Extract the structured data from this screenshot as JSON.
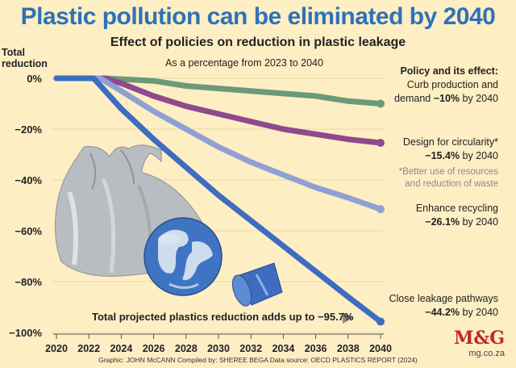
{
  "header": {
    "title": "Plastic pollution can be eliminated by 2040",
    "subtitle": "Effect of policies on reduction in plastic leakage",
    "note": "As a percentage from 2023 to 2040"
  },
  "axis": {
    "ylabel_line1": "Total",
    "ylabel_line2": "reduction"
  },
  "legend": {
    "heading": "Policy and its effect:",
    "curb_line1": "Curb production and",
    "curb_line2_text": "demand ",
    "curb_value": "−10%",
    "curb_suffix": " by 2040",
    "design_line1": "Design for circularity*",
    "design_value": "−15.4%",
    "design_suffix": " by 2040",
    "footnote_line1": "*Better use of resources",
    "footnote_line2": "and reduction of waste",
    "recycle_line1": "Enhance recycling",
    "recycle_value": "−26.1%",
    "recycle_suffix": " by 2040",
    "leak_line1": "Close leakage pathways",
    "leak_value": "−44.2%",
    "leak_suffix": " by 2040"
  },
  "total_note": "Total projected plastics reduction adds up to −95.7%",
  "credit": "Graphic: JOHN McCANN  Compiled by: SHEREE BEGA  Data source: OECD PLASTICS REPORT (2024)",
  "brand": {
    "logo": "M&G",
    "url": "mg.co.za"
  },
  "chart_data": {
    "type": "line",
    "title": "Plastic pollution can be eliminated by 2040",
    "subtitle": "Effect of policies on reduction in plastic leakage",
    "xlabel": "",
    "ylabel": "Total reduction",
    "xlim": [
      2020,
      2040
    ],
    "ylim": [
      -100,
      0
    ],
    "x_ticks": [
      "2020",
      "2022",
      "2024",
      "2026",
      "2028",
      "2030",
      "2032",
      "2034",
      "2036",
      "2038",
      "2040"
    ],
    "y_ticks": [
      "0%",
      "−20%",
      "−40%",
      "−60%",
      "−80%",
      "−100%"
    ],
    "y_tick_values": [
      0,
      -20,
      -40,
      -60,
      -80,
      -100
    ],
    "series": [
      {
        "name": "Curb production and demand",
        "color": "#6a9a78",
        "x": [
          2020,
          2023,
          2026,
          2028,
          2030,
          2032,
          2034,
          2036,
          2038,
          2040
        ],
        "y": [
          0,
          0,
          -1,
          -3,
          -4,
          -5,
          -6,
          -7,
          -9,
          -10
        ]
      },
      {
        "name": "Design for circularity",
        "color": "#8e4a8c",
        "x": [
          2020,
          2023,
          2024,
          2026,
          2028,
          2030,
          2032,
          2034,
          2036,
          2038,
          2040
        ],
        "y": [
          0,
          0,
          -2,
          -7,
          -11,
          -14,
          -17,
          -20,
          -22,
          -24,
          -25.4
        ]
      },
      {
        "name": "Enhance recycling",
        "color": "#8fa0d4",
        "x": [
          2020,
          2022.7,
          2024,
          2026,
          2028,
          2030,
          2032,
          2034,
          2036,
          2038,
          2040
        ],
        "y": [
          0,
          0,
          -5,
          -13,
          -20,
          -27,
          -33,
          -38,
          -43,
          -47,
          -51.5
        ]
      },
      {
        "name": "Close leakage pathways",
        "color": "#3d6cc0",
        "x": [
          2020,
          2022.3,
          2024,
          2026,
          2028,
          2030,
          2032,
          2034,
          2036,
          2038,
          2040
        ],
        "y": [
          0,
          0,
          -12,
          -24,
          -35,
          -46,
          -56,
          -66,
          -76,
          -86,
          -95.7
        ]
      }
    ],
    "annotations": [
      "Curb production and demand −10% by 2040",
      "Design for circularity* −15.4% by 2040",
      "Enhance recycling −26.1% by 2040",
      "Close leakage pathways −44.2% by 2040",
      "Total projected plastics reduction adds up to −95.7%"
    ]
  }
}
